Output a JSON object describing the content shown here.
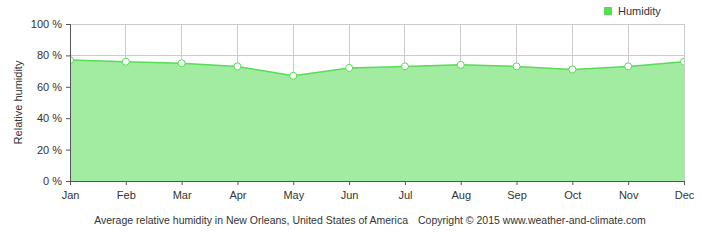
{
  "chart_data": {
    "type": "area",
    "title": "Average relative humidity in New Orleans, United States of America",
    "annotations": [
      "Copyright © 2015 www.weather-and-climate.com"
    ],
    "y_label": "Relative humidity",
    "categories": [
      "Jan",
      "Feb",
      "Mar",
      "Apr",
      "May",
      "Jun",
      "Jul",
      "Aug",
      "Sep",
      "Oct",
      "Nov",
      "Dec"
    ],
    "series": [
      {
        "name": "Humidity",
        "color": "#55dd55",
        "values": [
          77,
          76,
          75,
          73,
          67,
          72,
          73,
          74,
          73,
          71,
          73,
          76
        ]
      }
    ],
    "ylim": [
      0,
      100
    ],
    "yticks": [
      {
        "value": 0,
        "label": "0 %"
      },
      {
        "value": 20,
        "label": "20 %"
      },
      {
        "value": 40,
        "label": "40 %"
      },
      {
        "value": 60,
        "label": "60 %"
      },
      {
        "value": 80,
        "label": "80 %"
      },
      {
        "value": 100,
        "label": "100 %"
      }
    ],
    "grid": true,
    "legend": "top-right",
    "marker": "circle"
  }
}
